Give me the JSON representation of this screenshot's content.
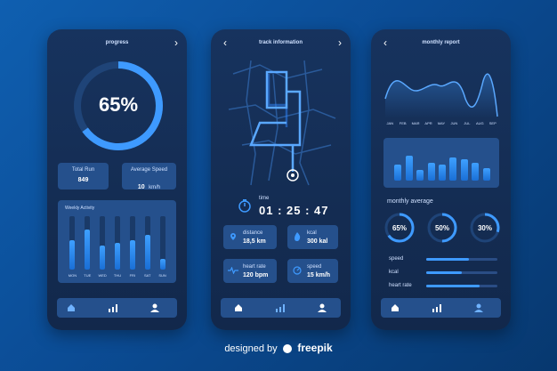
{
  "screens": {
    "progress": {
      "title": "progress",
      "percent": "65%",
      "progress_fraction": 0.65,
      "total_run_label": "Total Run",
      "total_run_value": "849",
      "avg_speed_label": "Average Speed",
      "avg_speed_value": "10",
      "avg_speed_unit": "km/h",
      "weekly_label": "Weekly Activity",
      "days": [
        "MON",
        "TUE",
        "WED",
        "THU",
        "FRI",
        "SAT",
        "SUN"
      ],
      "activity": [
        0.55,
        0.75,
        0.45,
        0.5,
        0.55,
        0.65,
        0.2
      ]
    },
    "track": {
      "title": "track information",
      "time_label": "time",
      "time_value": "01 : 25 : 47",
      "distance_label": "distance",
      "distance_value": "18,5 km",
      "kcal_label": "kcal",
      "kcal_value": "300 kal",
      "heart_label": "heart rate",
      "heart_value": "120 bpm",
      "speed_label": "speed",
      "speed_value": "15 km/h"
    },
    "report": {
      "title": "monthly report",
      "months": [
        "JAN",
        "FEB",
        "MAR",
        "APR",
        "MAY",
        "JUN",
        "JUL",
        "AUG",
        "SEP"
      ],
      "monthly_bars": [
        0.45,
        0.7,
        0.3,
        0.5,
        0.45,
        0.65,
        0.6,
        0.5,
        0.35
      ],
      "monthly_average_label": "monthly average",
      "circles": [
        {
          "label": "65%",
          "value": 0.65
        },
        {
          "label": "50%",
          "value": 0.5
        },
        {
          "label": "30%",
          "value": 0.3
        }
      ],
      "metrics": [
        {
          "label": "speed",
          "value": 0.6
        },
        {
          "label": "kcal",
          "value": 0.5
        },
        {
          "label": "heart rate",
          "value": 0.75
        }
      ]
    }
  },
  "footer": {
    "credit": "designed by",
    "brand": "freepik"
  },
  "colors": {
    "accent": "#3e9aff",
    "card": "#25508c",
    "panel": "#17335e"
  }
}
